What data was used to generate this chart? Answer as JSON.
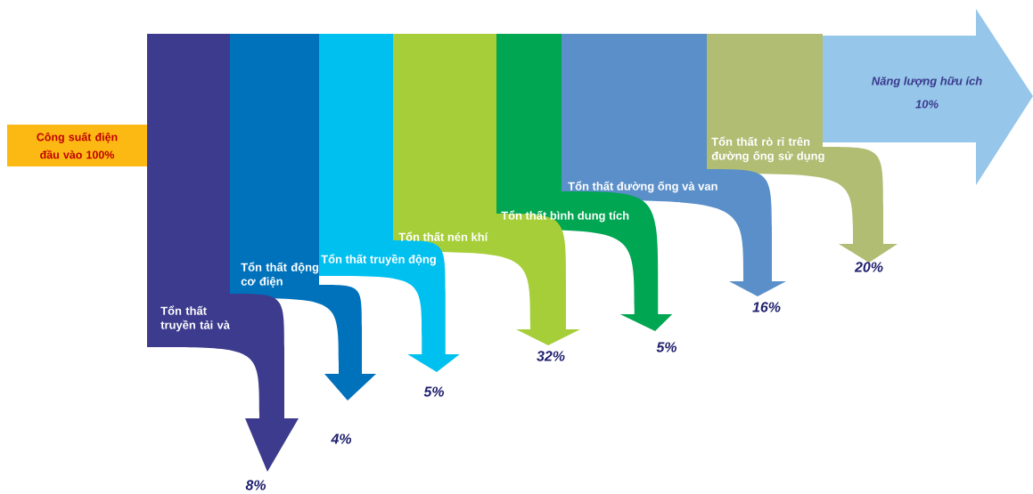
{
  "chart_data": {
    "type": "other",
    "categories": [
      "Tổn thất truyền tải và",
      "Tổn thất động cơ điện",
      "Tổn thất truyền động",
      "Tổn thất nén khí",
      "Tổn thất bình dung tích",
      "Tổn thất đường ống và van",
      "Tổn thất rò rỉ trên đường ống sử dụng",
      "Năng lượng hữu ích"
    ],
    "values": [
      8,
      4,
      5,
      32,
      5,
      16,
      20,
      10
    ],
    "value_labels": [
      "8%",
      "4%",
      "5%",
      "32%",
      "5%",
      "16%",
      "20%",
      "10%"
    ],
    "colors": [
      "#3d3b8e",
      "#0072bc",
      "#00c0f0",
      "#a6ce39",
      "#00a651",
      "#5b8fc9",
      "#b0bd73",
      "#96c6ea"
    ],
    "annotations": [
      "Công suất điện đầu vào 100%"
    ]
  }
}
